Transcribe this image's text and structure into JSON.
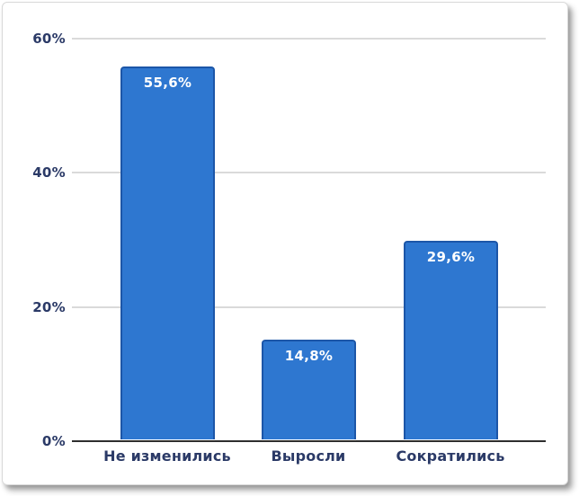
{
  "chart_data": {
    "type": "bar",
    "title": "",
    "xlabel": "",
    "ylabel": "",
    "categories": [
      "Не изменились",
      "Выросли",
      "Сократились"
    ],
    "values": [
      55.6,
      14.8,
      29.6
    ],
    "value_labels": [
      "55,6%",
      "14,8%",
      "29,6%"
    ],
    "ylim": [
      0,
      60
    ],
    "ytick_values": [
      60,
      40,
      20,
      0
    ],
    "ytick_labels": [
      "60%",
      "40%",
      "20%",
      "0%"
    ],
    "grid": "horizontal-on",
    "legend": "none",
    "bar_color": "#2e77d0",
    "bar_border_color": "#1c56a8",
    "gridline_color": "#dadada",
    "zero_axis_color": "#2e2e2e",
    "axis_label_color": "#2b3a67",
    "data_label_color": "#ffffff"
  }
}
